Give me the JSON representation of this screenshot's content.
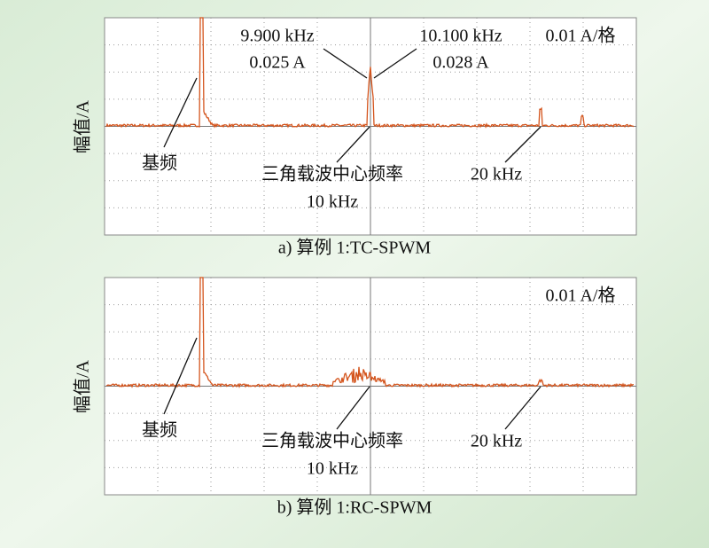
{
  "panels": [
    {
      "caption": "a) 算例 1:TC-SPWM",
      "y_label": "幅值/A",
      "scale": "0.01 A/格",
      "fundamental": "基频",
      "carrier": "三角载波中心频率",
      "carrier_freq": "10 kHz",
      "harmonic": "20 kHz",
      "peaks": [
        {
          "freq": "9.900 kHz",
          "amp": "0.025 A"
        },
        {
          "freq": "10.100 kHz",
          "amp": "0.028 A"
        }
      ]
    },
    {
      "caption": "b) 算例 1:RC-SPWM",
      "y_label": "幅值/A",
      "scale": "0.01 A/格",
      "fundamental": "基频",
      "carrier": "三角载波中心频率",
      "carrier_freq": "10 kHz",
      "harmonic": "20 kHz"
    }
  ]
}
